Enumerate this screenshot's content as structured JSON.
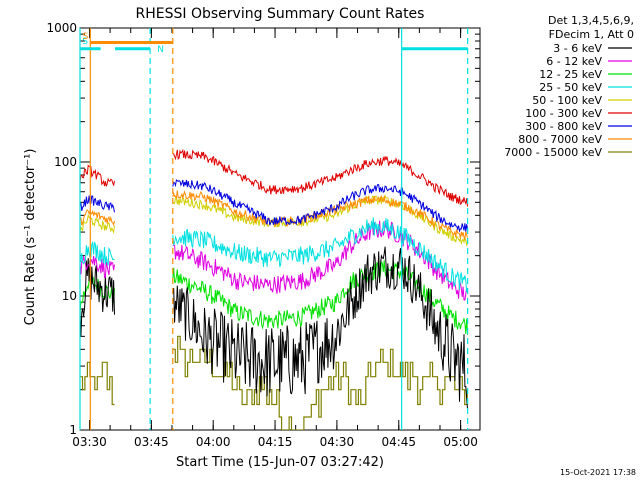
{
  "chart_data": {
    "type": "line",
    "title": "RHESSI Observing Summary Count Rates",
    "xlabel": "Start Time (15-Jun-07 03:27:42)",
    "ylabel": "Count Rate (s⁻¹ detector⁻¹)",
    "y_scale": "log",
    "ylim": [
      1,
      1000
    ],
    "y_ticks": [
      1,
      10,
      100,
      1000
    ],
    "y_tick_labels": [
      "1",
      "10",
      "100",
      "1000"
    ],
    "xlim_minutes": [
      0,
      97
    ],
    "x_ticks_minutes": [
      2.3,
      17.3,
      32.3,
      47.3,
      62.3,
      77.3,
      92.3
    ],
    "x_tick_labels": [
      "03:30",
      "03:45",
      "04:00",
      "04:15",
      "04:30",
      "04:45",
      "05:00"
    ],
    "grid": false,
    "legend_position": "right",
    "legend_header": [
      "Det 1,3,4,5,6,9,",
      "FDecim 1, Att 0"
    ],
    "timestamp": "15-Oct-2021 17:38",
    "data_gap_minutes": [
      8.5,
      22.5
    ],
    "series": [
      {
        "name": "3 - 6 keV",
        "color": "#000000",
        "x": [
          0,
          2,
          4,
          6,
          8.5,
          22.5,
          30,
          38,
          46,
          54,
          62,
          66,
          70,
          74,
          78,
          82,
          86,
          90,
          94
        ],
        "y": [
          7,
          14,
          12,
          11,
          10,
          9,
          5,
          3.5,
          3.2,
          3.3,
          5,
          9,
          15,
          17,
          17,
          11,
          6,
          3.5,
          2.7
        ]
      },
      {
        "name": "6 - 12 keV",
        "color": "#e000e0",
        "x": [
          0,
          2,
          4,
          6,
          8.5,
          22.5,
          30,
          38,
          46,
          54,
          62,
          66,
          70,
          74,
          78,
          82,
          86,
          90,
          94
        ],
        "y": [
          16,
          19,
          18,
          16,
          15,
          22,
          18,
          13,
          12,
          13,
          17,
          24,
          30,
          32,
          28,
          22,
          16,
          12,
          10
        ]
      },
      {
        "name": "12 - 25 keV",
        "color": "#00e000",
        "x": [
          0,
          2,
          4,
          6,
          8.5,
          22.5,
          30,
          38,
          46,
          54,
          62,
          66,
          70,
          74,
          78,
          82,
          86,
          90,
          94
        ],
        "y": [
          8,
          13,
          12,
          11,
          10,
          14,
          11,
          7.5,
          6.5,
          7,
          9,
          13,
          15,
          16,
          15,
          12,
          9,
          7,
          6
        ]
      },
      {
        "name": "25 - 50 keV",
        "color": "#00e0e0",
        "x": [
          0,
          2,
          4,
          6,
          8.5,
          22.5,
          30,
          38,
          46,
          54,
          62,
          66,
          70,
          74,
          78,
          82,
          86,
          90,
          94
        ],
        "y": [
          18,
          23,
          22,
          20,
          19,
          28,
          26,
          21,
          19,
          20,
          23,
          28,
          33,
          33,
          29,
          23,
          18,
          14,
          12
        ]
      },
      {
        "name": "50 - 100 keV",
        "color": "#d0d000",
        "x": [
          0,
          2,
          4,
          6,
          8.5,
          22.5,
          30,
          38,
          46,
          54,
          62,
          66,
          70,
          74,
          78,
          82,
          86,
          90,
          94
        ],
        "y": [
          30,
          38,
          35,
          33,
          32,
          52,
          48,
          38,
          35,
          36,
          40,
          47,
          52,
          52,
          48,
          40,
          33,
          28,
          25
        ]
      },
      {
        "name": "100 - 300 keV",
        "color": "#e00000",
        "x": [
          0,
          2,
          4,
          6,
          8.5,
          22.5,
          30,
          38,
          46,
          54,
          62,
          66,
          70,
          74,
          78,
          82,
          86,
          90,
          94
        ],
        "y": [
          75,
          88,
          80,
          70,
          68,
          115,
          110,
          80,
          62,
          64,
          76,
          88,
          98,
          103,
          95,
          80,
          65,
          55,
          50
        ]
      },
      {
        "name": "300 - 800 keV",
        "color": "#0000e0",
        "x": [
          0,
          2,
          4,
          6,
          8.5,
          22.5,
          30,
          38,
          46,
          54,
          62,
          66,
          70,
          74,
          78,
          82,
          86,
          90,
          94
        ],
        "y": [
          45,
          53,
          50,
          47,
          45,
          70,
          66,
          48,
          36,
          37,
          46,
          55,
          62,
          64,
          60,
          50,
          40,
          34,
          32
        ]
      },
      {
        "name": "800 - 7000 keV",
        "color": "#ff8c00",
        "x": [
          0,
          2,
          4,
          6,
          8.5,
          22.5,
          30,
          38,
          46,
          54,
          62,
          66,
          70,
          74,
          78,
          82,
          86,
          90,
          94
        ],
        "y": [
          35,
          42,
          40,
          38,
          36,
          58,
          55,
          42,
          35,
          37,
          44,
          48,
          52,
          52,
          48,
          42,
          35,
          30,
          28
        ]
      },
      {
        "name": "7000 - 15000 keV",
        "color": "#808000",
        "x": [
          0,
          2,
          4,
          6,
          8.5,
          22.5,
          24,
          28,
          32,
          36,
          40,
          44,
          48,
          52,
          56,
          60,
          64,
          68,
          72,
          76,
          80,
          84,
          88,
          92,
          94
        ],
        "y": [
          2.5,
          2.4,
          2.2,
          2.5,
          1.5,
          4.5,
          3.7,
          3.4,
          3.2,
          2.6,
          1.5,
          2.4,
          1.4,
          1,
          1.3,
          2.2,
          2.4,
          1.5,
          3.2,
          3,
          2.6,
          2.2,
          2.4,
          1.8,
          2
        ]
      }
    ],
    "flag_bars": [
      {
        "color": "#00e0e0",
        "level": 700,
        "x_range": [
          0,
          5
        ]
      },
      {
        "color": "#ff8c00",
        "level": 780,
        "x_range": [
          2.5,
          22.5
        ]
      },
      {
        "color": "#00e0e0",
        "level": 700,
        "x_range": [
          8.5,
          17
        ]
      },
      {
        "color": "#00e0e0",
        "level": 700,
        "x_range": [
          78,
          94
        ]
      }
    ],
    "flag_labels": [
      {
        "text": "S",
        "color": "#00e0e0",
        "x": 0.3,
        "y": 760
      },
      {
        "text": "S",
        "color": "#ff8c00",
        "x": 0.4,
        "y": 830
      },
      {
        "text": "N",
        "color": "#00e0e0",
        "x": 18.5,
        "y": 660
      }
    ],
    "vertical_markers": [
      {
        "x": 0,
        "color": "#00e0e0",
        "style": "solid"
      },
      {
        "x": 2.5,
        "color": "#ff8c00",
        "style": "solid"
      },
      {
        "x": 17,
        "color": "#00e0e0",
        "style": "dashed"
      },
      {
        "x": 22.5,
        "color": "#ff8c00",
        "style": "dashed"
      },
      {
        "x": 78,
        "color": "#00e0e0",
        "style": "solid"
      },
      {
        "x": 94,
        "color": "#00e0e0",
        "style": "dashed"
      }
    ]
  }
}
